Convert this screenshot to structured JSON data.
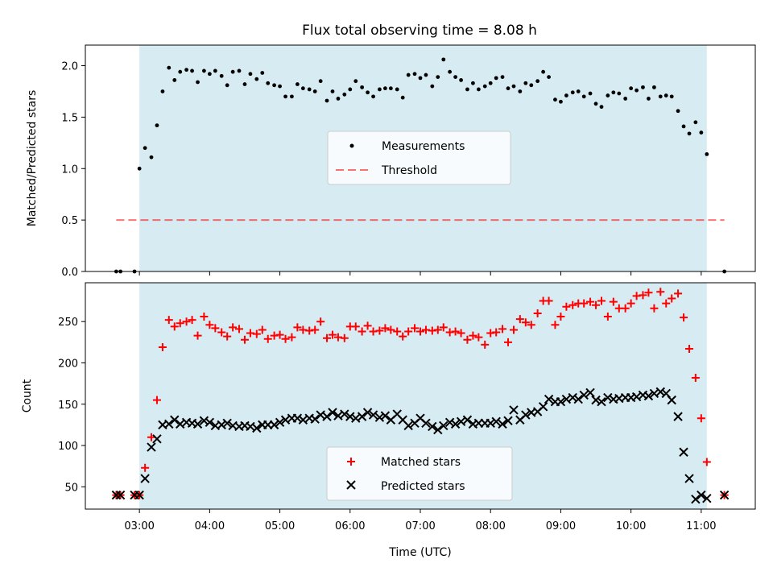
{
  "chart_data": [
    {
      "type": "scatter",
      "title": "Flux total observing time = 8.08 h",
      "xlabel": "",
      "ylabel": "Matched/Predicted stars",
      "xlim": [
        -0.77,
        8.77
      ],
      "ylim": [
        0.0,
        2.2
      ],
      "yticks": [
        "0.0",
        "0.5",
        "1.0",
        "1.5",
        "2.0"
      ],
      "grid": false,
      "legend_position": "center",
      "shaded_interval": [
        0.0,
        8.08
      ],
      "colors": {
        "shade": "#add8e6",
        "measurements": "#000000",
        "threshold": "#ff0000"
      },
      "legend": [
        "Measurements",
        "Threshold"
      ],
      "threshold": {
        "value": 0.5,
        "x_range": [
          -0.33,
          8.33
        ]
      },
      "measurements_x": [
        -0.33,
        -0.27,
        -0.07,
        0,
        0.08,
        0.17,
        0.25,
        0.33,
        0.42,
        0.5,
        0.58,
        0.67,
        0.75,
        0.83,
        0.92,
        1,
        1.08,
        1.17,
        1.25,
        1.33,
        1.42,
        1.5,
        1.58,
        1.67,
        1.75,
        1.83,
        1.92,
        2,
        2.08,
        2.17,
        2.25,
        2.33,
        2.42,
        2.5,
        2.58,
        2.67,
        2.75,
        2.83,
        2.92,
        3,
        3.08,
        3.17,
        3.25,
        3.33,
        3.42,
        3.5,
        3.58,
        3.67,
        3.75,
        3.83,
        3.92,
        4,
        4.08,
        4.17,
        4.25,
        4.33,
        4.42,
        4.5,
        4.58,
        4.67,
        4.75,
        4.83,
        4.92,
        5,
        5.08,
        5.17,
        5.25,
        5.33,
        5.42,
        5.5,
        5.58,
        5.67,
        5.75,
        5.83,
        5.92,
        6,
        6.08,
        6.17,
        6.25,
        6.33,
        6.42,
        6.5,
        6.58,
        6.67,
        6.75,
        6.83,
        6.92,
        7,
        7.08,
        7.17,
        7.25,
        7.33,
        7.42,
        7.5,
        7.58,
        7.67,
        7.75,
        7.83,
        7.92,
        8,
        8.08,
        8.33
      ],
      "measurements_y": [
        0,
        0,
        0,
        1.0,
        1.2,
        1.11,
        1.42,
        1.75,
        1.98,
        1.86,
        1.94,
        1.96,
        1.95,
        1.84,
        1.95,
        1.92,
        1.95,
        1.9,
        1.81,
        1.94,
        1.95,
        1.82,
        1.92,
        1.87,
        1.93,
        1.83,
        1.81,
        1.8,
        1.7,
        1.7,
        1.82,
        1.78,
        1.77,
        1.75,
        1.85,
        1.66,
        1.75,
        1.68,
        1.72,
        1.77,
        1.85,
        1.79,
        1.74,
        1.7,
        1.77,
        1.78,
        1.78,
        1.77,
        1.69,
        1.91,
        1.92,
        1.88,
        1.91,
        1.8,
        1.89,
        2.06,
        1.94,
        1.89,
        1.86,
        1.77,
        1.83,
        1.77,
        1.8,
        1.83,
        1.88,
        1.89,
        1.78,
        1.8,
        1.75,
        1.83,
        1.81,
        1.85,
        1.94,
        1.89,
        1.67,
        1.65,
        1.71,
        1.74,
        1.75,
        1.7,
        1.73,
        1.63,
        1.6,
        1.71,
        1.74,
        1.73,
        1.68,
        1.78,
        1.76,
        1.79,
        1.68,
        1.79,
        1.7,
        1.71,
        1.7,
        1.56,
        1.41,
        1.34,
        1.45,
        1.35,
        1.14,
        0
      ]
    },
    {
      "type": "scatter",
      "title": "",
      "xlabel": "Time (UTC)",
      "ylabel": "Count",
      "xlim": [
        -0.77,
        8.77
      ],
      "ylim": [
        23,
        297
      ],
      "yticks": [
        "50",
        "100",
        "150",
        "200",
        "250"
      ],
      "xticks": [
        "03:00",
        "04:00",
        "05:00",
        "06:00",
        "07:00",
        "08:00",
        "09:00",
        "10:00",
        "11:00"
      ],
      "grid": false,
      "legend_position": "lower center",
      "shaded_interval": [
        0.0,
        8.08
      ],
      "colors": {
        "shade": "#add8e6",
        "matched": "#ff0000",
        "predicted": "#000000"
      },
      "legend": [
        "Matched stars",
        "Predicted stars"
      ],
      "x": [
        -0.33,
        -0.27,
        -0.07,
        0,
        0.08,
        0.17,
        0.25,
        0.33,
        0.42,
        0.5,
        0.58,
        0.67,
        0.75,
        0.83,
        0.92,
        1,
        1.08,
        1.17,
        1.25,
        1.33,
        1.42,
        1.5,
        1.58,
        1.67,
        1.75,
        1.83,
        1.92,
        2,
        2.08,
        2.17,
        2.25,
        2.33,
        2.42,
        2.5,
        2.58,
        2.67,
        2.75,
        2.83,
        2.92,
        3,
        3.08,
        3.17,
        3.25,
        3.33,
        3.42,
        3.5,
        3.58,
        3.67,
        3.75,
        3.83,
        3.92,
        4,
        4.08,
        4.17,
        4.25,
        4.33,
        4.42,
        4.5,
        4.58,
        4.67,
        4.75,
        4.83,
        4.92,
        5,
        5.08,
        5.17,
        5.25,
        5.33,
        5.42,
        5.5,
        5.58,
        5.67,
        5.75,
        5.83,
        5.92,
        6,
        6.08,
        6.17,
        6.25,
        6.33,
        6.42,
        6.5,
        6.58,
        6.67,
        6.75,
        6.83,
        6.92,
        7,
        7.08,
        7.17,
        7.25,
        7.33,
        7.42,
        7.5,
        7.58,
        7.67,
        7.75,
        7.83,
        7.92,
        8,
        8.08,
        8.33
      ],
      "matched": [
        40,
        40,
        40,
        40,
        73,
        110,
        155,
        219,
        252,
        244,
        248,
        250,
        252,
        233,
        256,
        246,
        242,
        237,
        232,
        243,
        241,
        228,
        236,
        235,
        240,
        229,
        233,
        234,
        229,
        231,
        243,
        240,
        239,
        240,
        250,
        230,
        234,
        231,
        230,
        244,
        244,
        238,
        245,
        238,
        239,
        242,
        240,
        238,
        232,
        238,
        242,
        238,
        240,
        239,
        240,
        243,
        237,
        238,
        236,
        228,
        233,
        231,
        222,
        236,
        237,
        241,
        225,
        240,
        253,
        249,
        246,
        260,
        275,
        275,
        246,
        256,
        268,
        270,
        272,
        272,
        274,
        270,
        275,
        256,
        274,
        266,
        266,
        272,
        281,
        282,
        285,
        266,
        286,
        272,
        278,
        284,
        255,
        217,
        182,
        133,
        80,
        40
      ],
      "predicted": [
        40,
        40,
        40,
        40,
        60,
        98,
        108,
        125,
        126,
        131,
        126,
        128,
        127,
        126,
        130,
        128,
        124,
        125,
        127,
        124,
        123,
        124,
        123,
        121,
        125,
        125,
        125,
        128,
        131,
        133,
        133,
        131,
        133,
        132,
        137,
        135,
        140,
        136,
        138,
        135,
        133,
        135,
        140,
        137,
        134,
        136,
        131,
        138,
        131,
        124,
        127,
        133,
        127,
        123,
        119,
        124,
        128,
        126,
        129,
        131,
        126,
        127,
        127,
        127,
        129,
        126,
        130,
        143,
        131,
        137,
        140,
        141,
        147,
        156,
        153,
        153,
        156,
        158,
        156,
        161,
        164,
        155,
        153,
        158,
        156,
        157,
        158,
        158,
        159,
        161,
        160,
        163,
        165,
        163,
        155,
        135,
        92,
        60,
        35,
        40,
        36,
        40
      ]
    }
  ]
}
